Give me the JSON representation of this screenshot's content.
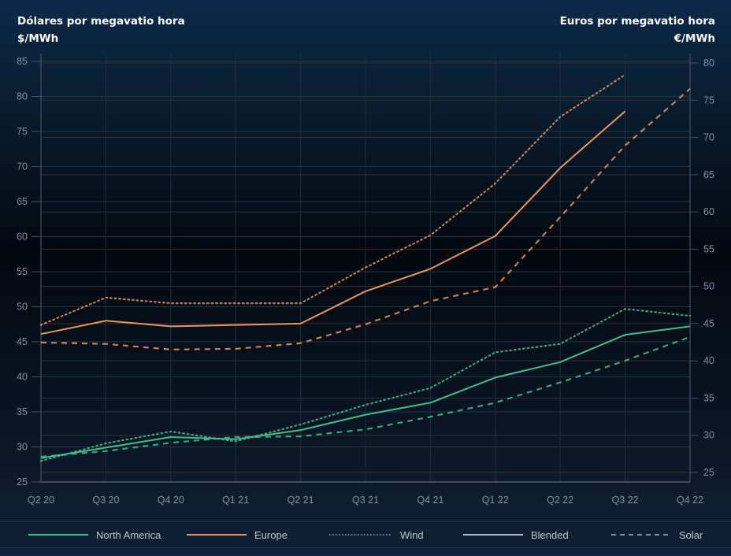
{
  "header": {
    "left_title": "Dólares por megavatio hora",
    "left_unit": "$/MWh",
    "right_title": "Euros por megavatio hora",
    "right_unit": "€/MWh"
  },
  "legend": [
    {
      "label": "North America",
      "style": "solid",
      "color": "#3fbf8c"
    },
    {
      "label": "Europe",
      "style": "solid",
      "color": "#e8975f"
    },
    {
      "label": "Wind",
      "style": "dotted",
      "color": "#9fb3c6"
    },
    {
      "label": "Blended",
      "style": "solid",
      "color": "#9fb3c6"
    },
    {
      "label": "Solar",
      "style": "dashed",
      "color": "#9fb3c6"
    }
  ],
  "chart_data": {
    "type": "line",
    "title": "",
    "xlabel": "",
    "ylabel_left": "$/MWh",
    "ylabel_right": "€/MWh",
    "x": [
      "Q2 20",
      "Q3 20",
      "Q4 20",
      "Q1 21",
      "Q2 21",
      "Q3 21",
      "Q4 21",
      "Q1 22",
      "Q2 22",
      "Q3 22",
      "Q4 22"
    ],
    "ylim_left": [
      25,
      85
    ],
    "yticks_left": [
      25,
      30,
      35,
      40,
      45,
      50,
      55,
      60,
      65,
      70,
      75,
      80,
      85
    ],
    "ylim_right": [
      25,
      80
    ],
    "yticks_right": [
      25,
      30,
      35,
      40,
      45,
      50,
      55,
      60,
      65,
      70,
      75,
      80
    ],
    "grid": true,
    "legend_position": "bottom",
    "series": [
      {
        "name": "Europe Wind",
        "region": "Europe",
        "type": "Wind",
        "color": "#e8975f",
        "dash": "dotted",
        "values": [
          47.4,
          51.3,
          50.5,
          50.5,
          50.5,
          55.6,
          60.2,
          67.6,
          77.1,
          83.1,
          null
        ]
      },
      {
        "name": "Europe Blended",
        "region": "Europe",
        "type": "Blended",
        "color": "#e8975f",
        "dash": "solid",
        "values": [
          46.1,
          48.0,
          47.2,
          47.4,
          47.6,
          52.2,
          55.4,
          60.1,
          69.8,
          77.9,
          null
        ]
      },
      {
        "name": "Europe Solar",
        "region": "Europe",
        "type": "Solar",
        "color": "#e8975f",
        "dash": "dashed",
        "values": [
          44.9,
          44.7,
          43.9,
          44.0,
          44.8,
          47.5,
          50.8,
          52.8,
          62.8,
          73.0,
          81.1
        ]
      },
      {
        "name": "North America Wind",
        "region": "North America",
        "type": "Wind",
        "color": "#3fbf8c",
        "dash": "dotted",
        "values": [
          28.0,
          30.5,
          32.2,
          30.8,
          33.2,
          36.0,
          38.4,
          43.5,
          44.7,
          49.7,
          48.7
        ]
      },
      {
        "name": "North America Blended",
        "region": "North America",
        "type": "Blended",
        "color": "#3fbf8c",
        "dash": "solid",
        "values": [
          28.4,
          29.9,
          31.4,
          31.1,
          32.4,
          34.6,
          36.3,
          39.9,
          42.1,
          46.0,
          47.2
        ]
      },
      {
        "name": "North America Solar",
        "region": "North America",
        "type": "Solar",
        "color": "#3fbf8c",
        "dash": "dashed",
        "values": [
          28.6,
          29.4,
          30.6,
          31.4,
          31.5,
          32.5,
          34.3,
          36.3,
          39.2,
          42.3,
          45.7
        ]
      }
    ]
  }
}
